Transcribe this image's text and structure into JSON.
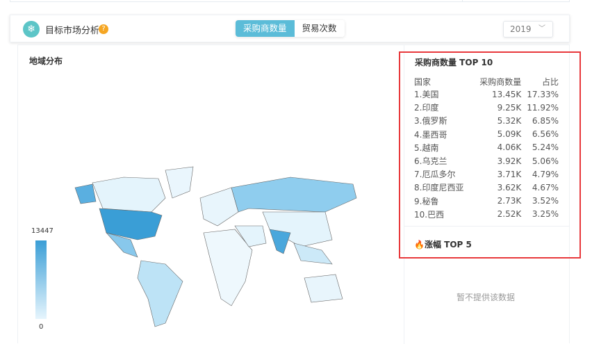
{
  "header": {
    "title": "目标市场分析",
    "help_icon": "question-icon",
    "tabs": [
      {
        "label": "采购商数量",
        "active": true
      },
      {
        "label": "贸易次数",
        "active": false
      }
    ],
    "year": "2019"
  },
  "map": {
    "title": "地域分布",
    "legend_max": "13447",
    "legend_min": "0",
    "colors": {
      "high": "#3a9ed6",
      "low": "#e6f5fd"
    }
  },
  "top10": {
    "title": "采购商数量 TOP 10",
    "columns": [
      "国家",
      "采购商数量",
      "占比"
    ],
    "rows": [
      [
        "1.美国",
        "13.45K",
        "17.33%"
      ],
      [
        "2.印度",
        "9.25K",
        "11.92%"
      ],
      [
        "3.俄罗斯",
        "5.32K",
        "6.85%"
      ],
      [
        "4.墨西哥",
        "5.09K",
        "6.56%"
      ],
      [
        "5.越南",
        "4.06K",
        "5.24%"
      ],
      [
        "6.乌克兰",
        "3.92K",
        "5.06%"
      ],
      [
        "7.厄瓜多尔",
        "3.71K",
        "4.79%"
      ],
      [
        "8.印度尼西亚",
        "3.62K",
        "4.67%"
      ],
      [
        "9.秘鲁",
        "2.73K",
        "3.52%"
      ],
      [
        "10.巴西",
        "2.52K",
        "3.25%"
      ]
    ]
  },
  "growth": {
    "title": "涨幅 TOP 5",
    "empty": "暂不提供该数据"
  }
}
